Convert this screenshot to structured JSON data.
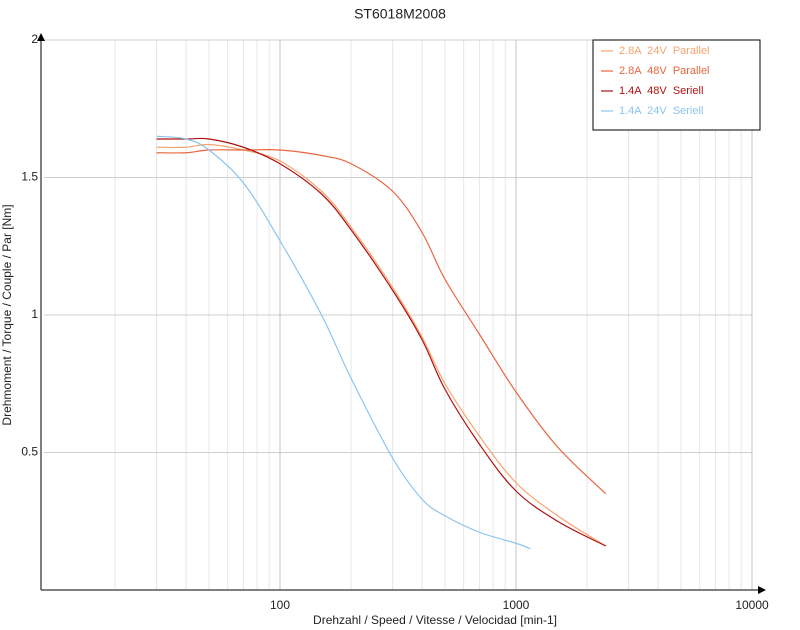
{
  "chart_data": {
    "type": "line",
    "title": "ST6018M2008",
    "x_label": "Drehzahl / Speed / Vitesse / Velocidad [min-1]",
    "y_label": "Drehmoment / Torque / Couple / Par [Nm]",
    "xscale": "log",
    "xlim": [
      10,
      10000
    ],
    "xticks": [
      100,
      1000,
      10000
    ],
    "ylim": [
      0,
      2
    ],
    "yticks": [
      0.5,
      1,
      1.5,
      2
    ],
    "grid": true,
    "legend": "top-right",
    "series": [
      {
        "name": "2.8A  24V  Parallel",
        "color": "#f5a470",
        "x": [
          30,
          40,
          50,
          70,
          100,
          150,
          200,
          300,
          400,
          500,
          700,
          1000,
          1500,
          2400
        ],
        "values": [
          1.61,
          1.61,
          1.62,
          1.6,
          1.56,
          1.45,
          1.32,
          1.1,
          0.92,
          0.75,
          0.56,
          0.39,
          0.27,
          0.16
        ]
      },
      {
        "name": "2.8A  48V  Parallel",
        "color": "#e8653f",
        "x": [
          30,
          40,
          50,
          70,
          100,
          150,
          200,
          300,
          400,
          500,
          700,
          1000,
          1500,
          2400
        ],
        "values": [
          1.59,
          1.59,
          1.6,
          1.6,
          1.6,
          1.58,
          1.55,
          1.45,
          1.3,
          1.13,
          0.93,
          0.72,
          0.52,
          0.35
        ]
      },
      {
        "name": "1.4A  48V  Seriell",
        "color": "#b01010",
        "x": [
          30,
          40,
          50,
          70,
          100,
          150,
          200,
          300,
          400,
          500,
          700,
          1000,
          1500,
          2400
        ],
        "values": [
          1.64,
          1.64,
          1.64,
          1.61,
          1.55,
          1.44,
          1.31,
          1.09,
          0.91,
          0.73,
          0.53,
          0.36,
          0.25,
          0.16
        ]
      },
      {
        "name": "1.4A  24V  Seriell",
        "color": "#8cc4ee",
        "x": [
          30,
          40,
          50,
          70,
          100,
          150,
          200,
          300,
          400,
          500,
          700,
          1000,
          1150
        ],
        "values": [
          1.65,
          1.64,
          1.6,
          1.48,
          1.27,
          1.0,
          0.77,
          0.48,
          0.33,
          0.27,
          0.21,
          0.17,
          0.15
        ]
      }
    ]
  }
}
